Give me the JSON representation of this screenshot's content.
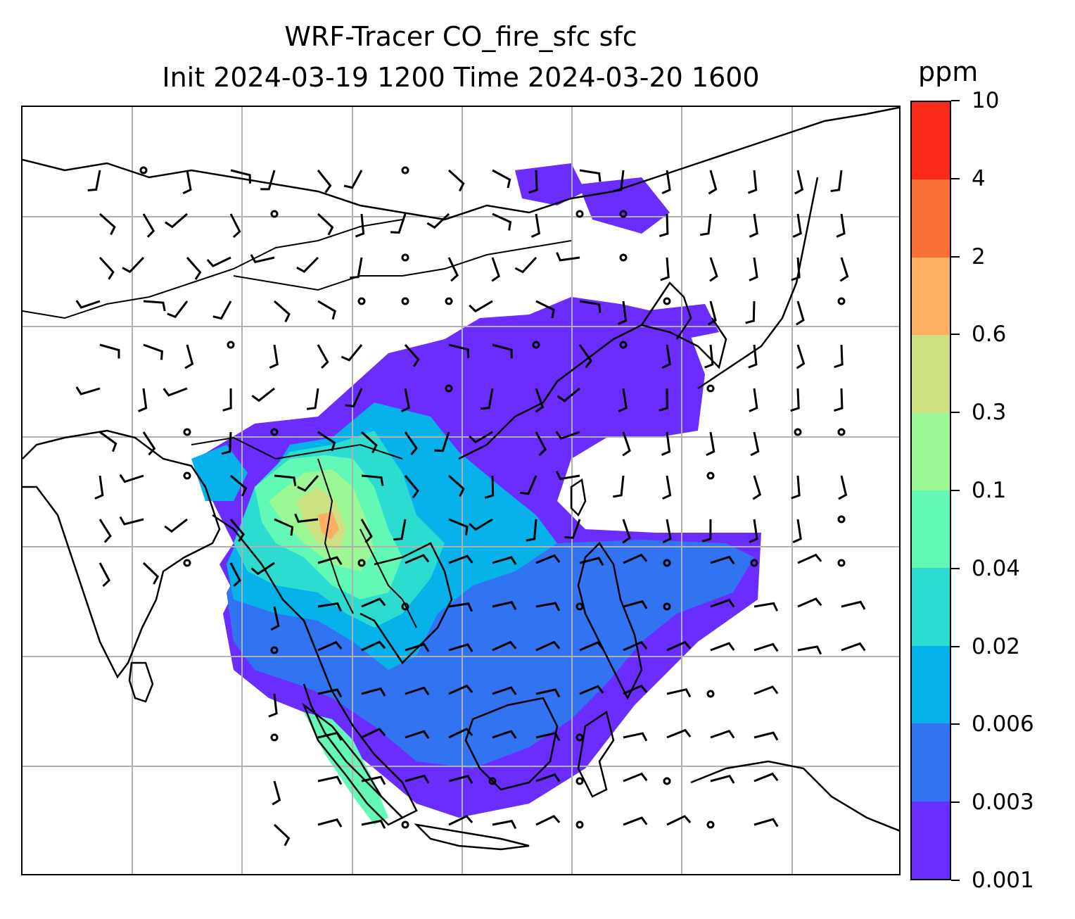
{
  "title_line1": "WRF-Tracer CO_fire_sfc sfc",
  "title_line2": "Init 2024-03-19 1200 Time 2024-03-20 1600",
  "colorbar": {
    "unit": "ppm",
    "levels": [
      "0.001",
      "0.003",
      "0.006",
      "0.02",
      "0.04",
      "0.1",
      "0.3",
      "0.6",
      "2",
      "4",
      "10"
    ],
    "colors": [
      "#6a2cff",
      "#3273f2",
      "#06b2e9",
      "#2ddcd1",
      "#62f8b5",
      "#9bf894",
      "#cde082",
      "#fdb062",
      "#fb7238",
      "#f9291b"
    ]
  },
  "map": {
    "layers": [
      "coastlines",
      "country-borders",
      "gridlines",
      "CO-tracer-filled-contours",
      "wind-barbs"
    ],
    "grid_color": "#b0b0b0",
    "coast_color": "#000000"
  }
}
